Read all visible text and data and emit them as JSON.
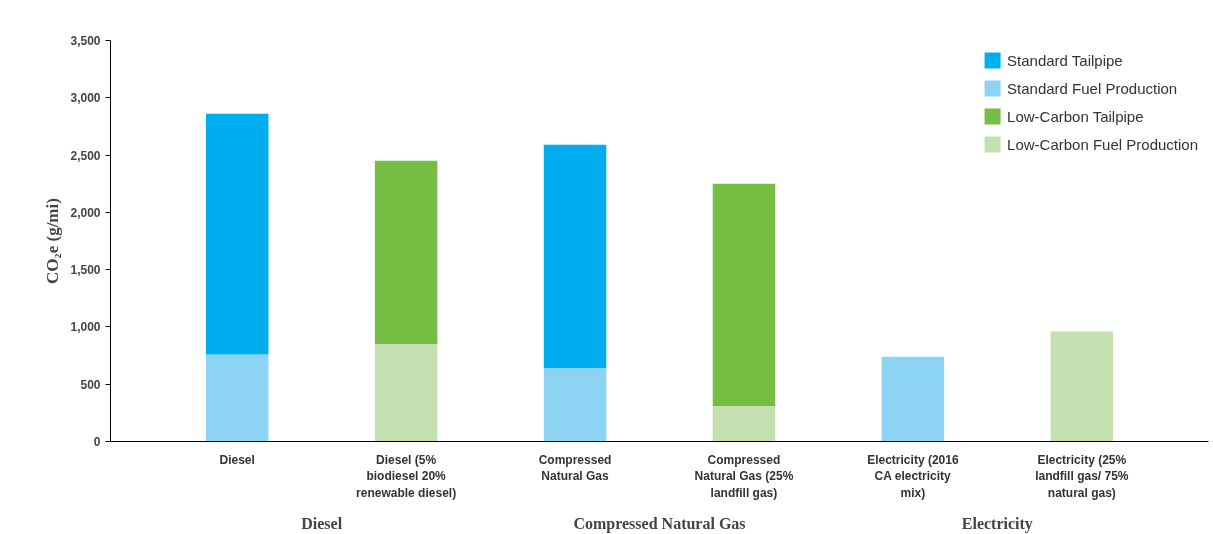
{
  "chart_data": {
    "type": "bar",
    "stacked": true,
    "ylabel": "CO₂e (g/mi)",
    "categories": [
      "Diesel",
      "Diesel (5% biodiesel 20% renewable diesel)",
      "Compressed Natural Gas",
      "Compressed Natural Gas (25% landfill gas)",
      "Electricity (2016 CA electricity mix)",
      "Electricity (25% landfill gas/ 75% natural gas)"
    ],
    "series": [
      {
        "name": "Low-Carbon Fuel Production",
        "color": "#c5e0b0",
        "values": [
          null,
          850,
          null,
          310,
          null,
          960
        ]
      },
      {
        "name": "Low-Carbon Tailpipe",
        "color": "#76bd43",
        "values": [
          null,
          1600,
          null,
          1940,
          null,
          null
        ]
      },
      {
        "name": "Standard Fuel Production",
        "color": "#8dd4f4",
        "values": [
          760,
          null,
          640,
          null,
          740,
          null
        ]
      },
      {
        "name": "Standard Tailpipe",
        "color": "#00adee",
        "values": [
          2100,
          null,
          1950,
          null,
          null,
          null
        ]
      }
    ],
    "ylim": [
      0,
      3500
    ],
    "yticks": [
      0,
      500,
      {
        "value": 1000,
        "label": "1,000"
      },
      {
        "value": 1500,
        "label": "1,500"
      },
      {
        "value": 2000,
        "label": "2,000"
      },
      {
        "value": 2500,
        "label": "2,500"
      },
      {
        "value": 3000,
        "label": "3,000"
      },
      {
        "value": 3500,
        "label": "3,500"
      }
    ],
    "annotations": [
      "Diesel",
      "Compressed Natural Gas",
      "Electricity"
    ],
    "legend": "top right",
    "grid": false
  }
}
